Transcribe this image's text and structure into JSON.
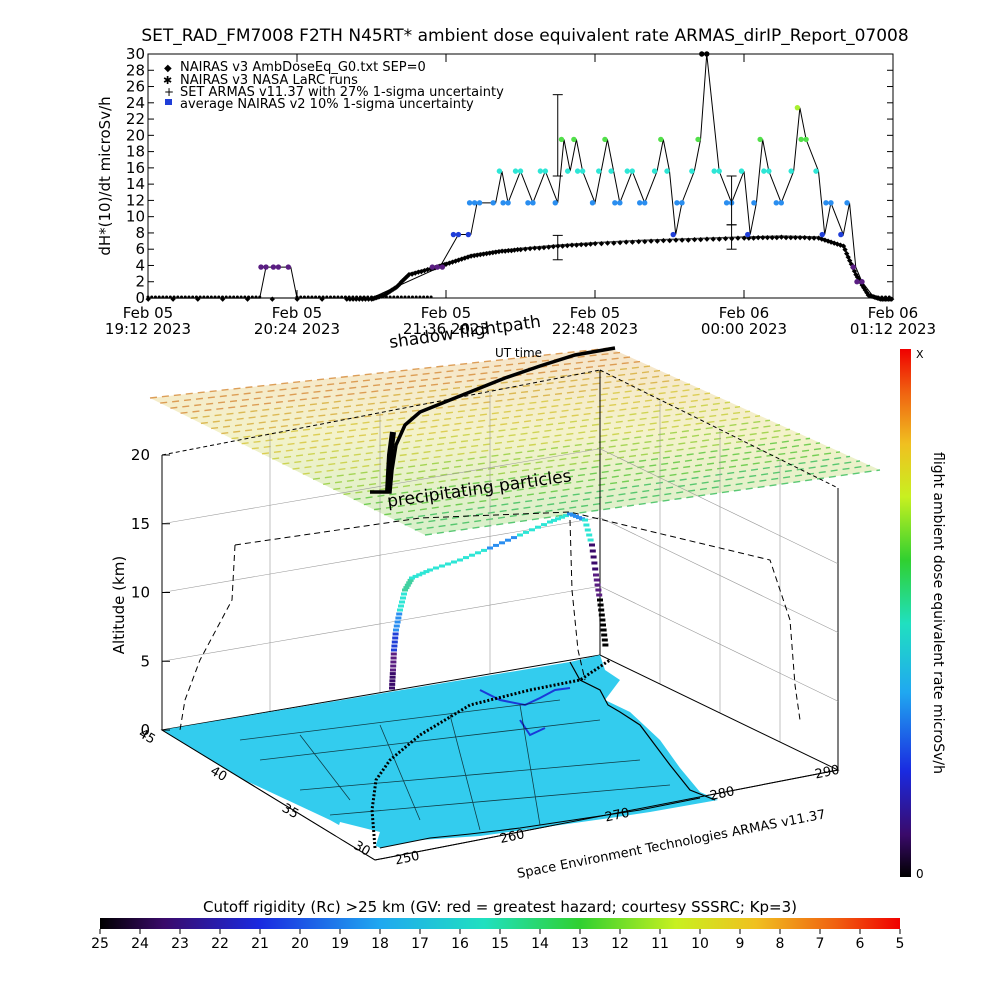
{
  "title": "SET_RAD_FM7008  F2TH N45RT* ambient dose equivalent rate ARMAS_dirIP_Report_07008",
  "chart_data": [
    {
      "type": "line",
      "ylabel": "dH*(10)/dt microSv/h",
      "ylim": [
        0,
        30
      ],
      "yticks": [
        "0",
        "2",
        "4",
        "6",
        "8",
        "10",
        "12",
        "14",
        "16",
        "18",
        "20",
        "22",
        "24",
        "26",
        "28",
        "30"
      ],
      "xlim_hours": [
        19.2,
        25.2
      ],
      "xticks": [
        {
          "line1": "Feb 05",
          "line2": "19:12 2023"
        },
        {
          "line1": "Feb 05",
          "line2": "20:24 2023"
        },
        {
          "line1": "Feb 05",
          "line2": "21:36 2023"
        },
        {
          "line1": "Feb 05",
          "line2": "22:48 2023"
        },
        {
          "line1": "Feb 06",
          "line2": "00:00 2023"
        },
        {
          "line1": "Feb 06",
          "line2": "01:12 2023"
        }
      ],
      "legend": [
        "NAIRAS v3 AmbDoseEq_G0.txt SEP=0",
        "NAIRAS v3 NASA LaRC runs",
        "SET ARMAS v11.37 with 27% 1-sigma uncertainty",
        "average NAIRAS v2 10% 1-sigma uncertainty"
      ],
      "legend_position": "top-left",
      "series": [
        {
          "color": "#444444",
          "points": [
            [
              19.2,
              0
            ],
            [
              20.8,
              0
            ],
            [
              21.0,
              0
            ],
            [
              21.1,
              0.5
            ],
            [
              21.2,
              1.5
            ],
            [
              21.3,
              3
            ],
            [
              21.5,
              3.8
            ],
            [
              21.6,
              4.3
            ],
            [
              21.8,
              5.3
            ],
            [
              22.0,
              5.8
            ],
            [
              22.2,
              6.1
            ],
            [
              22.5,
              6.5
            ],
            [
              22.8,
              6.8
            ],
            [
              23.2,
              7.1
            ],
            [
              23.6,
              7.3
            ],
            [
              24.0,
              7.5
            ],
            [
              24.3,
              7.6
            ],
            [
              24.6,
              7.5
            ],
            [
              24.8,
              6.5
            ],
            [
              24.9,
              3
            ],
            [
              25.0,
              0.5
            ],
            [
              25.1,
              0
            ],
            [
              25.2,
              0
            ]
          ]
        },
        {
          "color": "#000000",
          "error_bars": [
            [
              22.5,
              6.2,
              1.5
            ],
            [
              22.5,
              20,
              5
            ],
            [
              23.9,
              7.5,
              1.5
            ],
            [
              23.9,
              12,
              3
            ]
          ]
        }
      ],
      "armas_points": [
        [
          19.2,
          0,
          "#000000"
        ],
        [
          20.1,
          0,
          "#000000"
        ],
        [
          20.15,
          3.8,
          "#5a1e82"
        ],
        [
          20.25,
          3.8,
          "#5a1e82"
        ],
        [
          20.35,
          3.8,
          "#5a1e82"
        ],
        [
          20.4,
          0,
          "#000000"
        ],
        [
          21.0,
          0,
          "#000000"
        ],
        [
          21.55,
          3.8,
          "#5a1e82"
        ],
        [
          21.7,
          7.8,
          "#1f3ed8"
        ],
        [
          21.8,
          7.8,
          "#1f3ed8"
        ],
        [
          21.85,
          11.7,
          "#2a8ef0"
        ],
        [
          22.0,
          11.7,
          "#2a8ef0"
        ],
        [
          22.05,
          15.6,
          "#2ee6d6"
        ],
        [
          22.1,
          11.7,
          "#2a8ef0"
        ],
        [
          22.2,
          15.6,
          "#2ee6d6"
        ],
        [
          22.3,
          11.7,
          "#2a8ef0"
        ],
        [
          22.4,
          15.6,
          "#2ee6d6"
        ],
        [
          22.5,
          11.7,
          "#2a8ef0"
        ],
        [
          22.55,
          19.5,
          "#52e04a"
        ],
        [
          22.6,
          15.6,
          "#2ee6d6"
        ],
        [
          22.65,
          19.5,
          "#52e04a"
        ],
        [
          22.7,
          15.6,
          "#2ee6d6"
        ],
        [
          22.8,
          11.7,
          "#2a8ef0"
        ],
        [
          22.85,
          15.6,
          "#2ee6d6"
        ],
        [
          22.9,
          19.5,
          "#52e04a"
        ],
        [
          22.95,
          15.6,
          "#2ee6d6"
        ],
        [
          23.0,
          11.7,
          "#2a8ef0"
        ],
        [
          23.1,
          15.6,
          "#2ee6d6"
        ],
        [
          23.2,
          11.7,
          "#2a8ef0"
        ],
        [
          23.3,
          15.6,
          "#2ee6d6"
        ],
        [
          23.35,
          19.5,
          "#52e04a"
        ],
        [
          23.4,
          15.6,
          "#2ee6d6"
        ],
        [
          23.45,
          7.8,
          "#1f3ed8"
        ],
        [
          23.5,
          11.7,
          "#2a8ef0"
        ],
        [
          23.6,
          15.6,
          "#2ee6d6"
        ],
        [
          23.65,
          19.5,
          "#52e04a"
        ],
        [
          23.7,
          30,
          "#000000"
        ],
        [
          23.8,
          15.6,
          "#2ee6d6"
        ],
        [
          23.9,
          11.7,
          "#2a8ef0"
        ],
        [
          24.0,
          15.6,
          "#2ee6d6"
        ],
        [
          24.05,
          7.8,
          "#1f3ed8"
        ],
        [
          24.1,
          11.7,
          "#2a8ef0"
        ],
        [
          24.15,
          19.5,
          "#52e04a"
        ],
        [
          24.2,
          15.6,
          "#2ee6d6"
        ],
        [
          24.3,
          11.7,
          "#2a8ef0"
        ],
        [
          24.4,
          15.6,
          "#2ee6d6"
        ],
        [
          24.45,
          23.4,
          "#a8f030"
        ],
        [
          24.5,
          19.5,
          "#52e04a"
        ],
        [
          24.6,
          15.6,
          "#2ee6d6"
        ],
        [
          24.65,
          7.8,
          "#1f3ed8"
        ],
        [
          24.7,
          11.7,
          "#2a8ef0"
        ],
        [
          24.8,
          7.8,
          "#1f3ed8"
        ],
        [
          24.85,
          11.7,
          "#2a8ef0"
        ],
        [
          24.9,
          3.8,
          "#5a1e82"
        ],
        [
          24.95,
          2,
          "#5a1e82"
        ],
        [
          25.05,
          0,
          "#000000"
        ],
        [
          25.2,
          0,
          "#000000"
        ]
      ]
    },
    {
      "type": "scatter",
      "ylabel": "Altitude (km)",
      "zticks": [
        "0",
        "5",
        "10",
        "15",
        "20"
      ],
      "lat_ticks": [
        "45",
        "40",
        "35",
        "30"
      ],
      "lon_ticks": [
        "250",
        "260",
        "270",
        "280",
        "290"
      ],
      "annotations": [
        "shadow flightpath",
        "precipitating particles",
        "UT time",
        "Space Environment Technologies ARMAS v11.37"
      ]
    }
  ],
  "right_colorbar": {
    "label": "flight ambient dose equivalent rate microSv/h",
    "top_label": "X",
    "bottom_label": "0"
  },
  "bottom_colorbar": {
    "label": "Cutoff rigidity (Rc) >25 km (GV: red = greatest hazard; courtesy SSSRC; Kp=3)",
    "ticks": [
      "25",
      "24",
      "23",
      "22",
      "21",
      "20",
      "19",
      "18",
      "17",
      "16",
      "15",
      "14",
      "13",
      "12",
      "11",
      "10",
      "9",
      "8",
      "7",
      "6",
      "5"
    ]
  },
  "colors": {
    "map_fill": "#33ccee",
    "axis": "#000000"
  }
}
